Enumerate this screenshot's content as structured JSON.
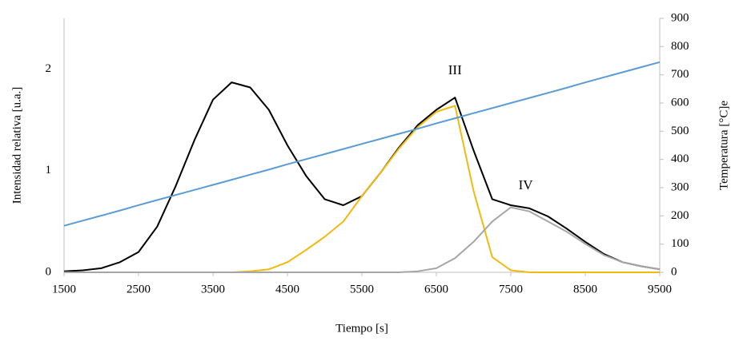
{
  "chart_data": {
    "type": "line",
    "x_label": "Tiempo [s]",
    "y_label": "Intensidad relativa  [u.a.]",
    "y2_label": "Temperatura [°C]e",
    "x": [
      1500,
      1750,
      2000,
      2250,
      2500,
      2750,
      3000,
      3250,
      3500,
      3750,
      4000,
      4250,
      4500,
      4750,
      5000,
      5250,
      5500,
      5750,
      6000,
      6250,
      6500,
      6750,
      7000,
      7250,
      7500,
      7750,
      8000,
      8250,
      8500,
      8750,
      9000,
      9250,
      9500
    ],
    "xlim": [
      1500,
      9500
    ],
    "xticks": [
      1500,
      2500,
      3500,
      4500,
      5500,
      6500,
      7500,
      8500,
      9500
    ],
    "ylim": [
      0,
      2.5
    ],
    "yticks": [
      0,
      1,
      2
    ],
    "y2lim": [
      0,
      900
    ],
    "y2ticks": [
      0,
      100,
      200,
      300,
      400,
      500,
      600,
      700,
      800,
      900
    ],
    "grid": false,
    "series": [
      {
        "color": "#000000",
        "values": [
          0.01,
          0.02,
          0.04,
          0.1,
          0.2,
          0.45,
          0.85,
          1.3,
          1.7,
          1.87,
          1.82,
          1.6,
          1.25,
          0.95,
          0.72,
          0.66,
          0.75,
          0.98,
          1.23,
          1.45,
          1.6,
          1.72,
          1.2,
          0.72,
          0.66,
          0.63,
          0.55,
          0.43,
          0.3,
          0.18,
          0.1,
          0.06,
          0.03
        ]
      },
      {
        "color": "#f2b90f",
        "values": [
          0,
          0,
          0,
          0,
          0,
          0,
          0,
          0,
          0,
          0,
          0.01,
          0.03,
          0.1,
          0.22,
          0.35,
          0.5,
          0.75,
          0.98,
          1.22,
          1.43,
          1.58,
          1.64,
          0.8,
          0.15,
          0.02,
          0,
          0,
          0,
          0,
          0,
          0,
          0,
          0
        ]
      },
      {
        "color": "#a6a6a6",
        "values": [
          0,
          0,
          0,
          0,
          0,
          0,
          0,
          0,
          0,
          0,
          0,
          0,
          0,
          0,
          0,
          0,
          0,
          0,
          0,
          0.01,
          0.04,
          0.14,
          0.3,
          0.5,
          0.64,
          0.6,
          0.5,
          0.4,
          0.28,
          0.17,
          0.1,
          0.06,
          0.03
        ]
      },
      {
        "color": "#5b9bd5",
        "axis": "y2",
        "values": [
          165,
          183,
          201,
          219,
          238,
          256,
          274,
          292,
          310,
          328,
          346,
          364,
          383,
          401,
          419,
          437,
          455,
          473,
          491,
          509,
          528,
          546,
          564,
          582,
          600,
          618,
          636,
          654,
          673,
          691,
          709,
          727,
          745
        ]
      }
    ],
    "annotations": [
      {
        "text": "III",
        "x": 6750,
        "y": 1.98
      },
      {
        "text": "IV",
        "x": 7700,
        "y": 0.85
      }
    ]
  }
}
